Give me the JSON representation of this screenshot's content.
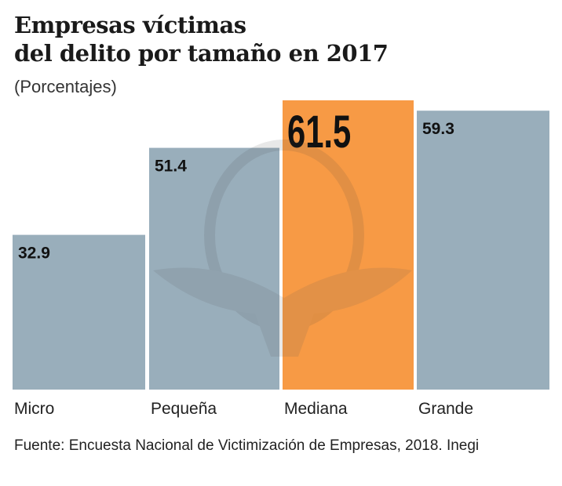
{
  "chart_data": {
    "type": "bar",
    "title": "Empresas víctimas del delito por tamaño en 2017",
    "title_lines": [
      "Empresas víctimas",
      "del delito por tamaño en 2017"
    ],
    "subtitle": "(Porcentajes)",
    "categories": [
      "Micro",
      "Pequeña",
      "Mediana",
      "Grande"
    ],
    "values": [
      32.9,
      51.4,
      61.5,
      59.3
    ],
    "value_labels": [
      "32.9",
      "51.4",
      "61.5",
      "59.3"
    ],
    "highlight_index": 2,
    "colors": {
      "default": "#99aebb",
      "highlight": "#f79a45"
    },
    "ylim": [
      0,
      61.5
    ],
    "grid": false,
    "xlabel": "",
    "ylabel": "",
    "source": "Fuente: Encuesta Nacional de Victimización de Empresas, 2018. Inegi"
  }
}
